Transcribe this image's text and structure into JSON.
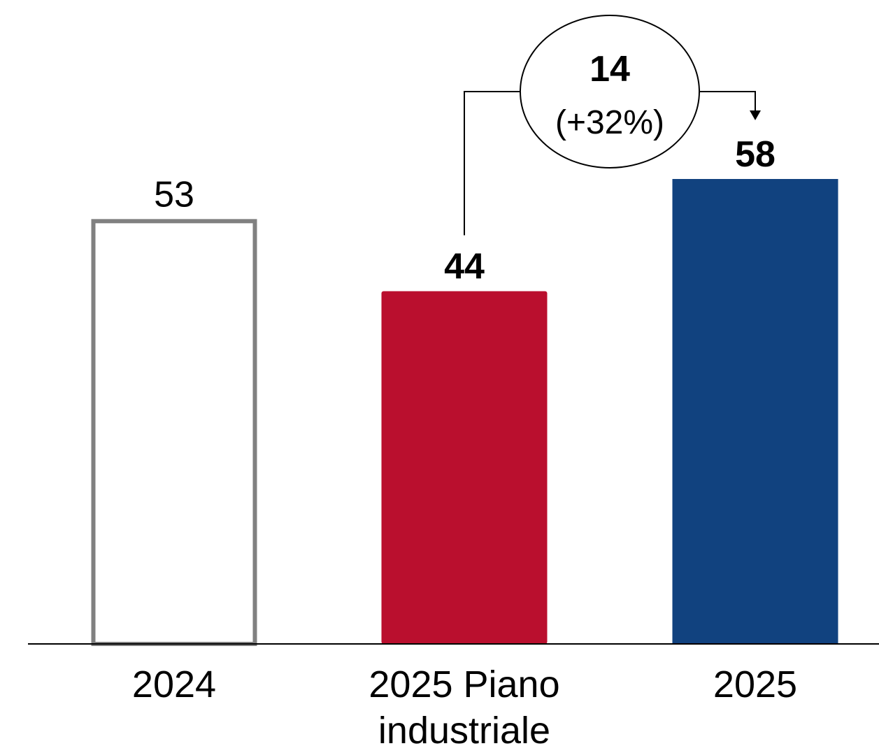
{
  "chart_data": {
    "type": "bar",
    "categories": [
      "2024",
      "2025 Piano industriale",
      "2025"
    ],
    "category_lines": [
      [
        "2024"
      ],
      [
        "2025 Piano",
        "industriale"
      ],
      [
        "2025"
      ]
    ],
    "values": [
      53,
      44,
      58
    ],
    "value_labels": [
      "53",
      "44",
      "58"
    ],
    "bold_labels": [
      false,
      true,
      true
    ],
    "colors": {
      "bar_2024_fill": "#ffffff",
      "bar_2024_outline": "#808080",
      "bar_piano": "#ba0f2e",
      "bar_2025": "#11427f",
      "axis": "#000000",
      "connector": "#000000"
    },
    "annotation": {
      "from_category": "2025 Piano industriale",
      "to_category": "2025",
      "delta": "14",
      "delta_pct": "(+32%)"
    },
    "ylim": [
      0,
      58
    ],
    "grid": false,
    "legend": "none"
  }
}
